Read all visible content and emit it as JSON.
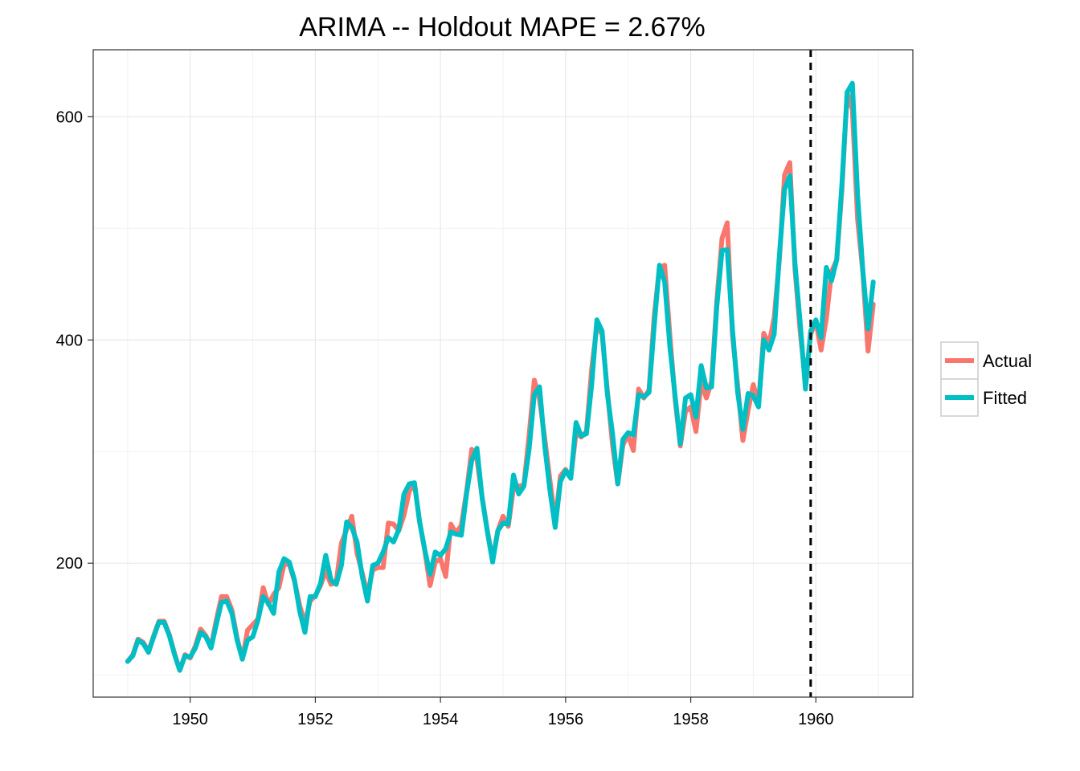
{
  "chart_data": {
    "type": "line",
    "title": "ARIMA -- Holdout MAPE = 2.67%",
    "xlabel": "",
    "ylabel": "",
    "xlim": [
      1948.45,
      1961.55
    ],
    "ylim": [
      80,
      660
    ],
    "x_ticks": [
      1950,
      1952,
      1954,
      1956,
      1958,
      1960
    ],
    "x_tick_labels": [
      "1950",
      "1952",
      "1954",
      "1956",
      "1958",
      "1960"
    ],
    "y_ticks": [
      200,
      400,
      600
    ],
    "y_tick_labels": [
      "200",
      "400",
      "600"
    ],
    "x_start": 1949.0,
    "x_step": 0.08333333,
    "holdout_start": 1959.917,
    "grid": true,
    "legend": {
      "position": "right",
      "entries": [
        "Actual",
        "Fitted"
      ]
    },
    "series": [
      {
        "name": "Actual",
        "color": "#F8766D",
        "values": [
          112,
          118,
          132,
          129,
          121,
          135,
          148,
          148,
          136,
          119,
          104,
          118,
          115,
          126,
          141,
          135,
          125,
          149,
          170,
          170,
          158,
          133,
          114,
          140,
          145,
          150,
          178,
          163,
          172,
          178,
          199,
          199,
          184,
          162,
          146,
          166,
          171,
          180,
          193,
          181,
          183,
          218,
          230,
          242,
          209,
          191,
          172,
          194,
          196,
          196,
          236,
          235,
          229,
          243,
          264,
          272,
          237,
          211,
          180,
          201,
          204,
          188,
          235,
          227,
          234,
          264,
          302,
          293,
          259,
          229,
          203,
          229,
          242,
          233,
          267,
          269,
          270,
          315,
          364,
          347,
          312,
          274,
          237,
          278,
          284,
          277,
          317,
          313,
          318,
          374,
          413,
          405,
          355,
          306,
          271,
          306,
          315,
          301,
          356,
          348,
          355,
          422,
          465,
          467,
          404,
          347,
          305,
          336,
          340,
          318,
          362,
          348,
          363,
          435,
          491,
          505,
          404,
          359,
          310,
          337,
          360,
          342,
          406,
          396,
          420,
          472,
          548,
          559,
          463,
          407,
          362,
          405,
          417,
          391,
          419,
          461,
          472,
          535,
          622,
          606,
          508,
          461,
          390,
          432
        ]
      },
      {
        "name": "Fitted",
        "color": "#00BFC4",
        "values": [
          112,
          117,
          131,
          128,
          120,
          134,
          147,
          147,
          135,
          118,
          104,
          117,
          116,
          124,
          138,
          134,
          124,
          145,
          165,
          166,
          155,
          131,
          114,
          131,
          134,
          149,
          170,
          164,
          155,
          192,
          204,
          201,
          185,
          157,
          138,
          170,
          170,
          182,
          207,
          185,
          181,
          198,
          237,
          232,
          219,
          188,
          166,
          198,
          200,
          210,
          223,
          219,
          230,
          262,
          271,
          272,
          237,
          212,
          190,
          210,
          207,
          213,
          228,
          226,
          225,
          262,
          292,
          303,
          258,
          228,
          201,
          229,
          236,
          235,
          279,
          262,
          269,
          302,
          351,
          358,
          305,
          265,
          232,
          273,
          283,
          276,
          326,
          314,
          316,
          360,
          418,
          408,
          352,
          316,
          271,
          311,
          317,
          315,
          351,
          349,
          353,
          413,
          467,
          452,
          394,
          350,
          307,
          348,
          351,
          331,
          377,
          357,
          358,
          430,
          480,
          481,
          410,
          353,
          320,
          352,
          350,
          340,
          400,
          391,
          405,
          476,
          535,
          547,
          468,
          415,
          356,
          408,
          418,
          402,
          465,
          453,
          472,
          540,
          622,
          630,
          530,
          463,
          410,
          452
        ]
      }
    ]
  }
}
